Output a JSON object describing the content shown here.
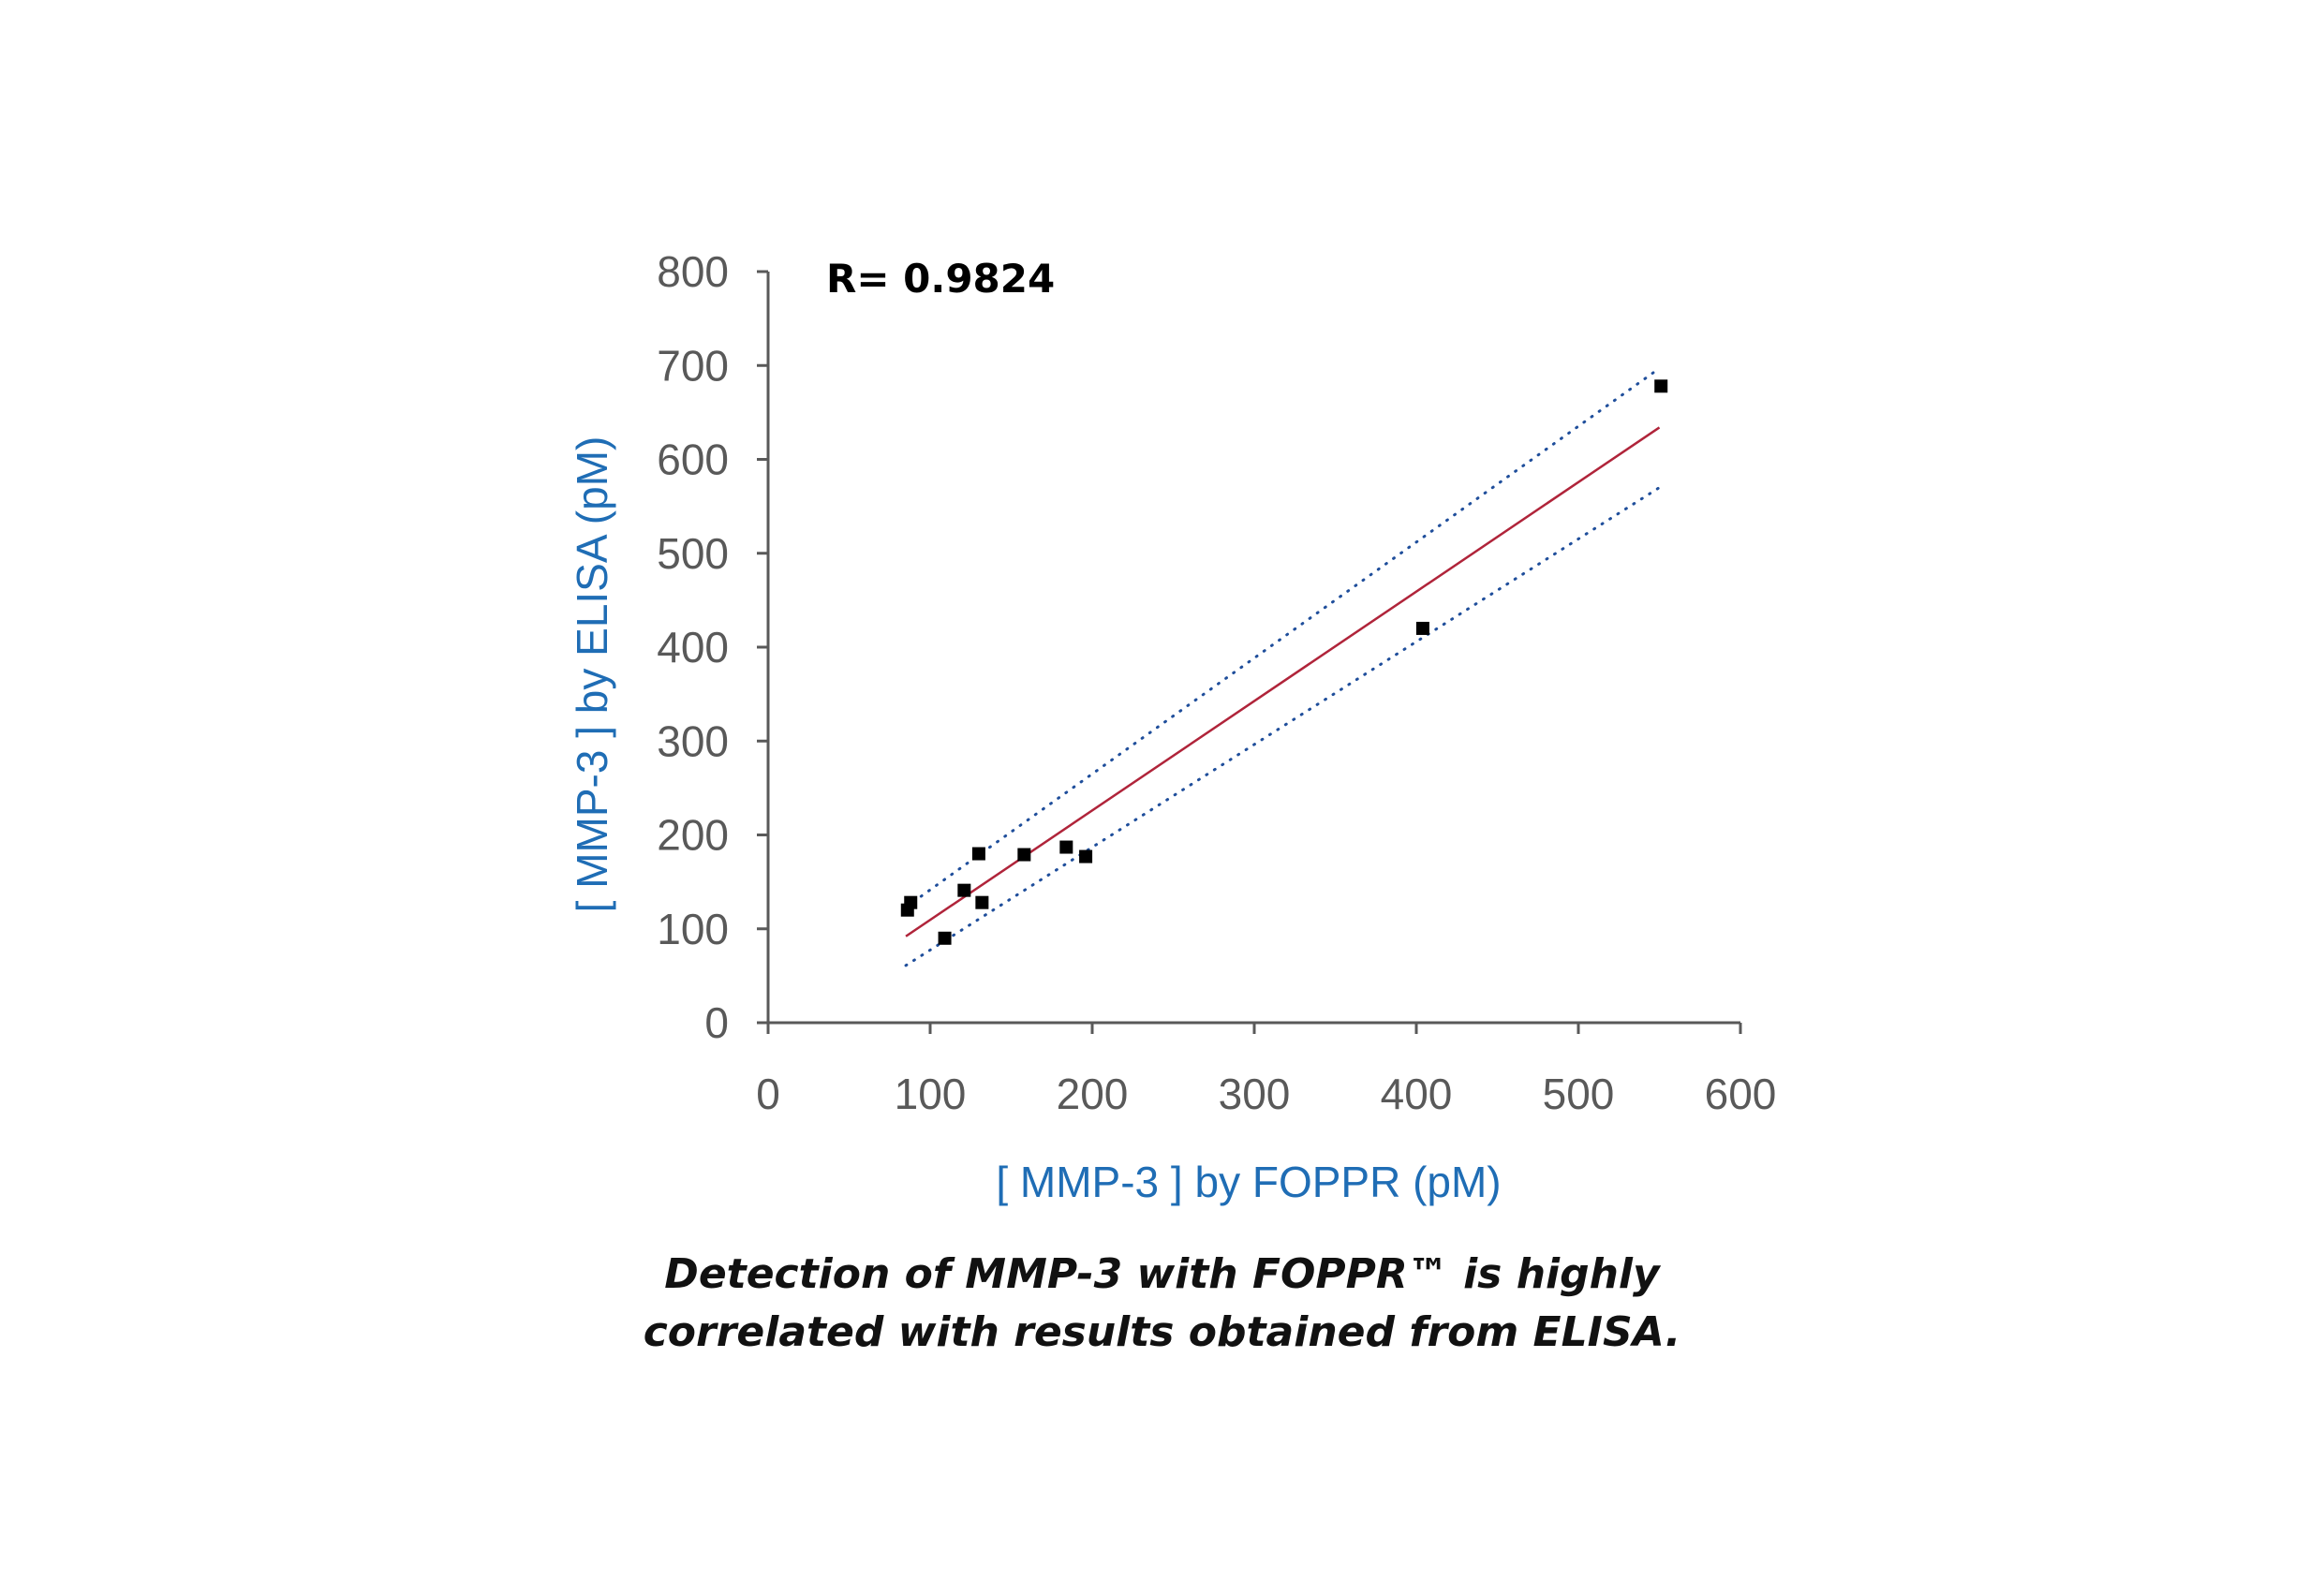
{
  "chart_data": {
    "type": "scatter",
    "title": "",
    "annotation": "R= 0.9824",
    "xlabel": "[ MMP-3 ] by FOPPR (pM)",
    "ylabel": "[ MMP-3 ] by ELISA (pM)",
    "xlim": [
      0,
      600
    ],
    "ylim": [
      0,
      800
    ],
    "x_ticks": [
      "0",
      "100",
      "200",
      "300",
      "400",
      "500",
      "600"
    ],
    "y_ticks": [
      "0",
      "100",
      "200",
      "300",
      "400",
      "500",
      "600",
      "700",
      "800"
    ],
    "grid": false,
    "legend": "none",
    "series": [
      {
        "points": [
          {
            "x": 86,
            "y": 120
          },
          {
            "x": 88,
            "y": 128
          },
          {
            "x": 109,
            "y": 90
          },
          {
            "x": 121,
            "y": 141
          },
          {
            "x": 130,
            "y": 180
          },
          {
            "x": 132,
            "y": 128
          },
          {
            "x": 158,
            "y": 179
          },
          {
            "x": 184,
            "y": 187
          },
          {
            "x": 196,
            "y": 177
          },
          {
            "x": 404,
            "y": 420
          },
          {
            "x": 551,
            "y": 678
          }
        ]
      }
    ],
    "fit_line": {
      "x": [
        85,
        550
      ],
      "y": [
        92,
        634
      ]
    },
    "confidence_upper": {
      "x": [
        85,
        550
      ],
      "y": [
        123,
        697
      ]
    },
    "confidence_lower": {
      "x": [
        85,
        550
      ],
      "y": [
        61,
        570
      ]
    },
    "colors": {
      "points": "#000000",
      "fit": "#b0243a",
      "confidence": "#1f4e9b",
      "axis": "#595959",
      "axis_title": "#1f6db5"
    }
  },
  "caption": {
    "line1": "Detection of MMP-3 with FOPPR™ is highly",
    "line2": "correlated with results obtained from ELISA."
  }
}
